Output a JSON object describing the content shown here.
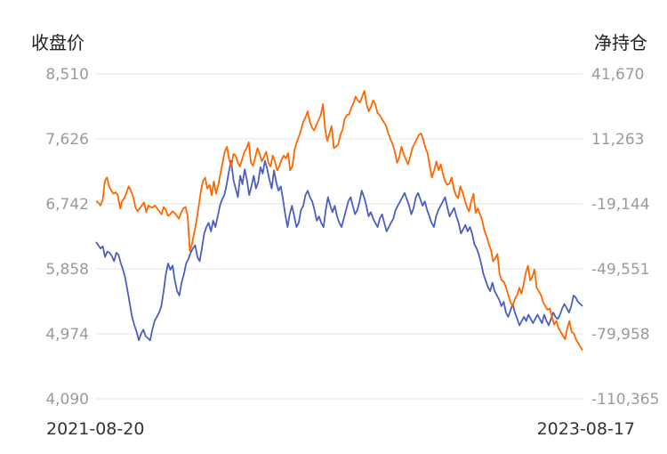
{
  "chart_data": {
    "type": "line",
    "left_axis_title": "收盘价",
    "right_axis_title": "净持仓",
    "left_ticks": [
      "8,510",
      "7,626",
      "6,742",
      "5,858",
      "4,974",
      "4,090"
    ],
    "right_ticks": [
      "41,670",
      "11,263",
      "-19,144",
      "-49,551",
      "-79,958",
      "-110,365"
    ],
    "x_start_label": "2021-08-20",
    "x_end_label": "2023-08-17",
    "left_ylim": [
      4090,
      8510
    ],
    "right_ylim": [
      -110365,
      41670
    ],
    "grid": "horizontal",
    "colors": {
      "close_price": "#ff6600",
      "net_position": "#4a5fc1"
    },
    "series": [
      {
        "axis": "left",
        "values": [
          6780,
          6760,
          6720,
          6790,
          7050,
          7100,
          6980,
          6920,
          6880,
          6900,
          6860,
          6680,
          6780,
          6820,
          6900,
          6980,
          6920,
          6840,
          6700,
          6640,
          6680,
          6720,
          6760,
          6630,
          6720,
          6700,
          6690,
          6720,
          6680,
          6640,
          6600,
          6700,
          6660,
          6580,
          6600,
          6640,
          6620,
          6580,
          6540,
          6620,
          6680,
          6700,
          6580,
          6100,
          6200,
          6350,
          6500,
          6700,
          6900,
          7050,
          7100,
          6950,
          7000,
          6860,
          7050,
          6880,
          7000,
          7150,
          7300,
          7450,
          7520,
          7350,
          7250,
          7420,
          7400,
          7300,
          7250,
          7350,
          7450,
          7500,
          7580,
          7300,
          7260,
          7380,
          7500,
          7420,
          7320,
          7380,
          7450,
          7300,
          7250,
          7400,
          7320,
          7200,
          7250,
          7340,
          7400,
          7360,
          7430,
          7200,
          7250,
          7480,
          7580,
          7660,
          7750,
          7860,
          7920,
          8000,
          7860,
          7780,
          7740,
          7820,
          7880,
          7950,
          8100,
          7760,
          7600,
          7700,
          7800,
          7500,
          7520,
          7550,
          7680,
          7750,
          7900,
          7950,
          7960,
          8050,
          8110,
          8200,
          8150,
          8120,
          8200,
          8280,
          8100,
          8000,
          8060,
          8150,
          8100,
          7980,
          7950,
          7900,
          7850,
          7800,
          7700,
          7620,
          7550,
          7450,
          7300,
          7380,
          7520,
          7420,
          7350,
          7280,
          7380,
          7500,
          7560,
          7620,
          7680,
          7700,
          7620,
          7500,
          7430,
          7250,
          7100,
          7200,
          7320,
          7200,
          7280,
          7150,
          7050,
          7000,
          7020,
          7100,
          6950,
          6860,
          6820,
          6980,
          6900,
          6800,
          6700,
          6640,
          6780,
          6880,
          6620,
          6680,
          6600,
          6520,
          6380,
          6300,
          6200,
          6120,
          5960,
          6000,
          6060,
          5780,
          5700,
          5680,
          5600,
          5500,
          5400,
          5350,
          5450,
          5500,
          5600,
          5520,
          5650,
          5800,
          5900,
          5700,
          5750,
          5850,
          5600,
          5550,
          5500,
          5400,
          5350,
          5300,
          5320,
          5200,
          5100,
          5150,
          5050,
          5000,
          4950,
          4900,
          5050,
          5150,
          5000,
          4980,
          4900,
          4850,
          4800,
          4750
        ]
      },
      {
        "axis": "right",
        "values": [
          -37000,
          -38500,
          -40000,
          -39000,
          -44000,
          -41500,
          -42000,
          -43500,
          -46000,
          -42000,
          -43000,
          -47000,
          -50000,
          -54000,
          -60000,
          -66000,
          -72000,
          -76000,
          -79000,
          -83000,
          -80000,
          -78000,
          -81000,
          -82000,
          -83000,
          -78000,
          -74000,
          -72000,
          -70000,
          -67000,
          -60000,
          -52000,
          -47000,
          -50000,
          -48000,
          -55000,
          -60000,
          -62000,
          -56000,
          -52000,
          -47000,
          -45000,
          -42000,
          -40000,
          -38500,
          -44000,
          -46000,
          -40000,
          -33000,
          -30000,
          -28000,
          -32000,
          -27000,
          -30000,
          -25000,
          -20000,
          -17000,
          -15000,
          -10000,
          -4000,
          1000,
          -8000,
          -12000,
          -16000,
          -6000,
          -10000,
          -3000,
          -8000,
          -15000,
          -11000,
          -6000,
          -12000,
          -9000,
          -2000,
          -5000,
          1000,
          -3000,
          -8000,
          -12000,
          -3500,
          -9000,
          -13000,
          -11000,
          -17000,
          -24000,
          -30000,
          -24000,
          -20000,
          -25000,
          -30000,
          -28000,
          -22000,
          -20000,
          -15000,
          -13000,
          -16000,
          -18000,
          -22000,
          -27000,
          -25000,
          -28000,
          -30000,
          -22000,
          -16000,
          -20000,
          -23000,
          -20000,
          -25000,
          -28000,
          -30000,
          -26000,
          -22000,
          -18000,
          -16000,
          -20000,
          -24000,
          -22000,
          -18000,
          -13000,
          -16000,
          -20000,
          -25000,
          -23000,
          -26000,
          -28000,
          -30000,
          -26000,
          -24000,
          -28000,
          -32000,
          -30000,
          -28000,
          -26000,
          -22000,
          -20000,
          -18000,
          -16000,
          -14000,
          -17000,
          -20000,
          -24000,
          -21000,
          -16000,
          -14000,
          -17000,
          -20000,
          -18000,
          -22000,
          -25000,
          -28000,
          -30000,
          -25000,
          -22000,
          -20000,
          -18000,
          -16000,
          -21000,
          -25000,
          -23000,
          -21000,
          -25000,
          -28000,
          -33000,
          -31000,
          -29000,
          -32000,
          -30000,
          -33000,
          -38000,
          -40000,
          -43000,
          -47000,
          -52000,
          -55000,
          -58000,
          -60000,
          -56000,
          -60000,
          -62000,
          -64000,
          -67000,
          -65000,
          -70000,
          -72000,
          -69000,
          -66000,
          -70000,
          -73000,
          -76000,
          -74000,
          -72000,
          -74000,
          -71000,
          -73000,
          -75000,
          -73000,
          -71000,
          -73000,
          -75000,
          -71000,
          -74000,
          -76000,
          -73000,
          -70000,
          -72000,
          -73000,
          -71000,
          -68000,
          -66000,
          -68000,
          -70000,
          -67000,
          -62000,
          -63000,
          -65000,
          -66000,
          -67000
        ]
      }
    ]
  }
}
